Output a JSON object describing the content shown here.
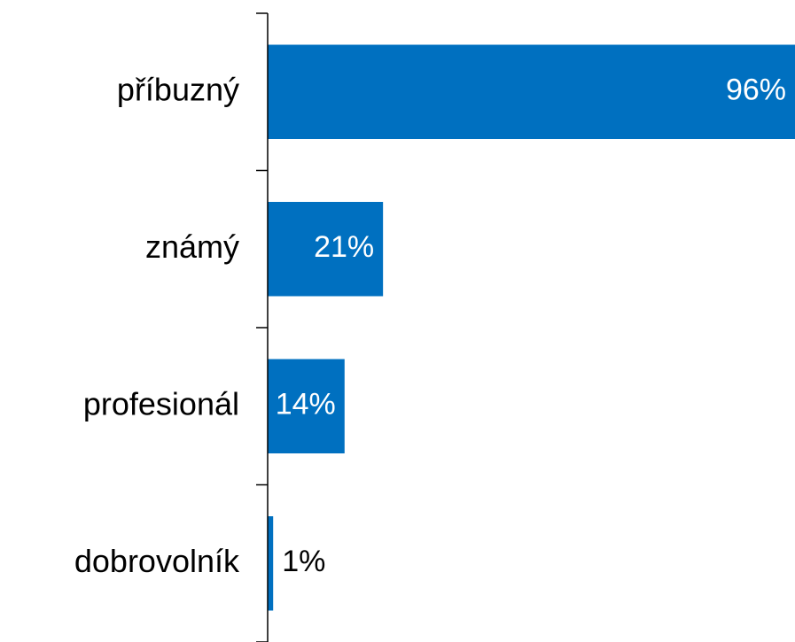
{
  "chart_data": {
    "type": "barh",
    "categories": [
      "příbuzný",
      "známý",
      "profesionál",
      "dobrovolník"
    ],
    "values": [
      96,
      21,
      14,
      1
    ],
    "value_labels": [
      "96%",
      "21%",
      "14%",
      "1%"
    ],
    "color": "#0070c0"
  }
}
